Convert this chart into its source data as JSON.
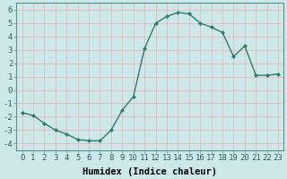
{
  "x": [
    0,
    1,
    2,
    3,
    4,
    5,
    6,
    7,
    8,
    9,
    10,
    11,
    12,
    13,
    14,
    15,
    16,
    17,
    18,
    19,
    20,
    21,
    22,
    23
  ],
  "y": [
    -1.7,
    -1.9,
    -2.5,
    -3.0,
    -3.3,
    -3.7,
    -3.8,
    -3.8,
    -3.0,
    -1.5,
    -0.5,
    3.1,
    5.0,
    5.5,
    5.8,
    5.7,
    5.0,
    4.7,
    4.3,
    2.5,
    3.3,
    1.1,
    1.1,
    1.2
  ],
  "line_color": "#2e7d6e",
  "marker": "D",
  "marker_size": 2.0,
  "bg_color": "#cde8e8",
  "grid_color": "#e8b8b8",
  "xlabel": "Humidex (Indice chaleur)",
  "xlabel_fontsize": 7.5,
  "xlim": [
    -0.5,
    23.5
  ],
  "ylim": [
    -4.5,
    6.5
  ],
  "xticks": [
    0,
    1,
    2,
    3,
    4,
    5,
    6,
    7,
    8,
    9,
    10,
    11,
    12,
    13,
    14,
    15,
    16,
    17,
    18,
    19,
    20,
    21,
    22,
    23
  ],
  "yticks": [
    -4,
    -3,
    -2,
    -1,
    0,
    1,
    2,
    3,
    4,
    5,
    6
  ],
  "tick_fontsize": 6.5,
  "line_width": 1.0
}
